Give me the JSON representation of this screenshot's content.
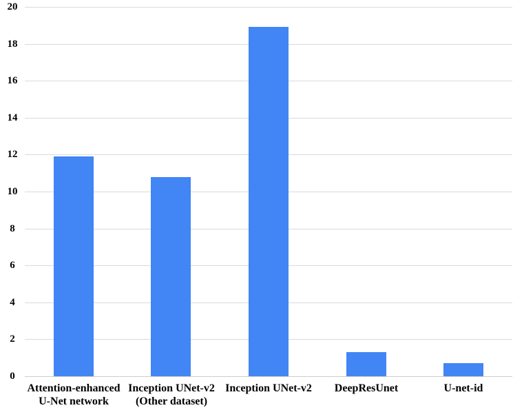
{
  "chart_data": {
    "type": "bar",
    "title": "",
    "xlabel": "",
    "ylabel": "",
    "categories": [
      "Attention-enhanced U-Net network",
      "Inception UNet-v2 (Other dataset)",
      "Inception UNet-v2",
      "DeepResUnet",
      "U-net-id"
    ],
    "category_lines": [
      [
        "Attention-enhanced",
        "U-Net network"
      ],
      [
        "Inception UNet-v2",
        "(Other dataset)"
      ],
      [
        "Inception UNet-v2"
      ],
      [
        "DeepResUnet"
      ],
      [
        "U-net-id"
      ]
    ],
    "values": [
      11.9,
      10.8,
      18.9,
      1.3,
      0.7
    ],
    "ylim": [
      0,
      20
    ],
    "ytick_step": 2,
    "yticks": [
      20,
      18,
      16,
      14,
      12,
      10,
      8,
      6,
      4,
      2,
      0
    ],
    "grid": true,
    "legend": "none",
    "bar_color": "#4285F4",
    "gridline_color": "#d9d9d9",
    "axis_line_color": "#cccccc",
    "text_color": "#000000",
    "background_color": "#ffffff"
  }
}
